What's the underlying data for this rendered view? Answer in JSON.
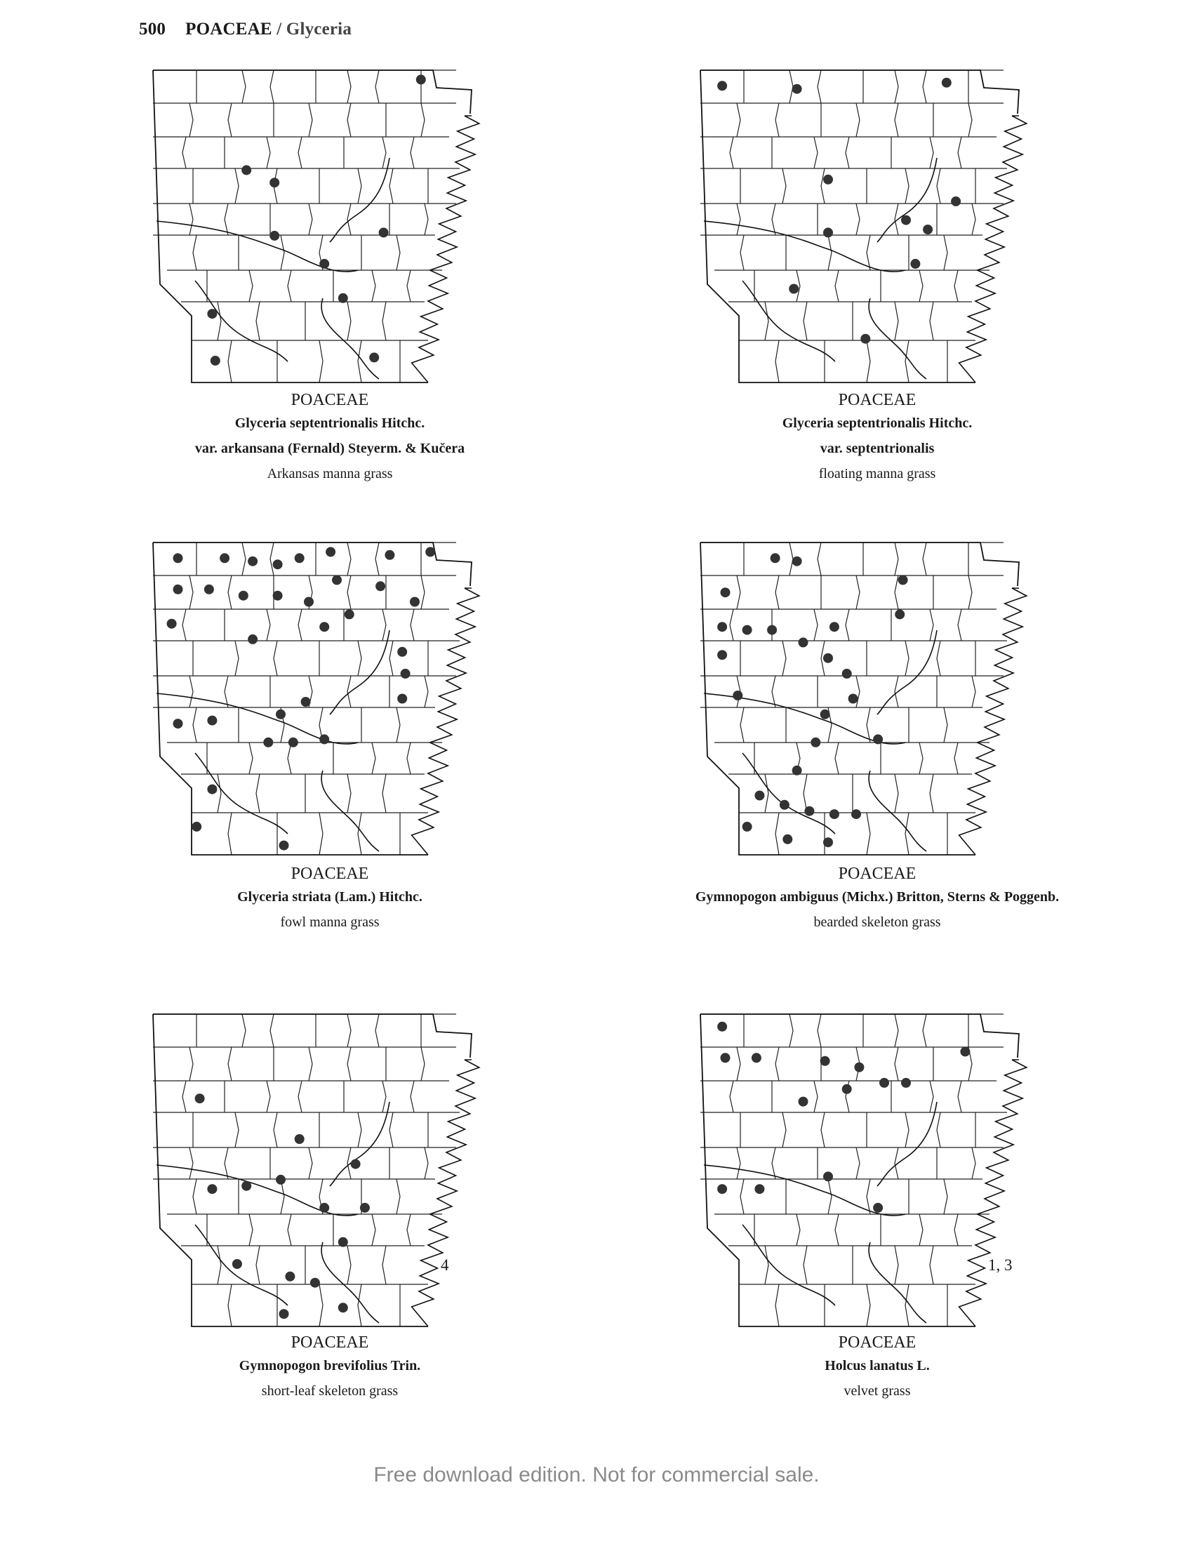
{
  "header": {
    "page_number": "500",
    "family": "POACEAE",
    "separator": " / ",
    "genus": "Glyceria"
  },
  "maps": [
    {
      "family": "POACEAE",
      "scientific_lines": [
        "Glyceria septentrionalis Hitchc.",
        "var. arkansana (Fernald) Steyerm. & Kučera"
      ],
      "common_name": "Arkansas manna grass",
      "note": "",
      "dots": [
        [
          0.86,
          0.03
        ],
        [
          0.3,
          0.32
        ],
        [
          0.39,
          0.36
        ],
        [
          0.39,
          0.53
        ],
        [
          0.74,
          0.52
        ],
        [
          0.55,
          0.62
        ],
        [
          0.61,
          0.73
        ],
        [
          0.19,
          0.78
        ],
        [
          0.2,
          0.93
        ],
        [
          0.71,
          0.92
        ]
      ]
    },
    {
      "family": "POACEAE",
      "scientific_lines": [
        "Glyceria septentrionalis Hitchc.",
        "var. septentrionalis"
      ],
      "common_name": "floating manna grass",
      "note": "",
      "dots": [
        [
          0.07,
          0.05
        ],
        [
          0.31,
          0.06
        ],
        [
          0.79,
          0.04
        ],
        [
          0.41,
          0.35
        ],
        [
          0.82,
          0.42
        ],
        [
          0.66,
          0.48
        ],
        [
          0.73,
          0.51
        ],
        [
          0.41,
          0.52
        ],
        [
          0.69,
          0.62
        ],
        [
          0.3,
          0.7
        ],
        [
          0.53,
          0.86
        ]
      ]
    },
    {
      "family": "POACEAE",
      "scientific_lines": [
        "Glyceria striata (Lam.) Hitchc."
      ],
      "common_name": "fowl manna grass",
      "note": "",
      "dots": [
        [
          0.08,
          0.05
        ],
        [
          0.23,
          0.05
        ],
        [
          0.32,
          0.06
        ],
        [
          0.4,
          0.07
        ],
        [
          0.47,
          0.05
        ],
        [
          0.57,
          0.03
        ],
        [
          0.76,
          0.04
        ],
        [
          0.89,
          0.03
        ],
        [
          0.08,
          0.15
        ],
        [
          0.18,
          0.15
        ],
        [
          0.29,
          0.17
        ],
        [
          0.4,
          0.17
        ],
        [
          0.5,
          0.19
        ],
        [
          0.59,
          0.12
        ],
        [
          0.73,
          0.14
        ],
        [
          0.84,
          0.19
        ],
        [
          0.06,
          0.26
        ],
        [
          0.55,
          0.27
        ],
        [
          0.63,
          0.23
        ],
        [
          0.32,
          0.31
        ],
        [
          0.8,
          0.35
        ],
        [
          0.81,
          0.42
        ],
        [
          0.8,
          0.5
        ],
        [
          0.49,
          0.51
        ],
        [
          0.41,
          0.55
        ],
        [
          0.08,
          0.58
        ],
        [
          0.19,
          0.57
        ],
        [
          0.37,
          0.64
        ],
        [
          0.45,
          0.64
        ],
        [
          0.55,
          0.63
        ],
        [
          0.19,
          0.79
        ],
        [
          0.14,
          0.91
        ],
        [
          0.42,
          0.97
        ]
      ]
    },
    {
      "family": "POACEAE",
      "scientific_lines": [
        "Gymnopogon ambiguus (Michx.) Britton, Sterns & Poggenb."
      ],
      "common_name": "bearded skeleton grass",
      "note": "",
      "dots": [
        [
          0.24,
          0.05
        ],
        [
          0.31,
          0.06
        ],
        [
          0.65,
          0.12
        ],
        [
          0.08,
          0.16
        ],
        [
          0.64,
          0.23
        ],
        [
          0.07,
          0.27
        ],
        [
          0.15,
          0.28
        ],
        [
          0.23,
          0.28
        ],
        [
          0.43,
          0.27
        ],
        [
          0.07,
          0.36
        ],
        [
          0.33,
          0.32
        ],
        [
          0.41,
          0.37
        ],
        [
          0.47,
          0.42
        ],
        [
          0.12,
          0.49
        ],
        [
          0.49,
          0.5
        ],
        [
          0.4,
          0.55
        ],
        [
          0.57,
          0.63
        ],
        [
          0.37,
          0.64
        ],
        [
          0.31,
          0.73
        ],
        [
          0.19,
          0.81
        ],
        [
          0.27,
          0.84
        ],
        [
          0.35,
          0.86
        ],
        [
          0.43,
          0.87
        ],
        [
          0.5,
          0.87
        ],
        [
          0.15,
          0.91
        ],
        [
          0.28,
          0.95
        ],
        [
          0.41,
          0.96
        ]
      ]
    },
    {
      "family": "POACEAE",
      "scientific_lines": [
        "Gymnopogon brevifolius Trin."
      ],
      "common_name": "short-leaf skeleton grass",
      "note": "4",
      "dots": [
        [
          0.15,
          0.27
        ],
        [
          0.47,
          0.4
        ],
        [
          0.65,
          0.48
        ],
        [
          0.41,
          0.53
        ],
        [
          0.3,
          0.55
        ],
        [
          0.19,
          0.56
        ],
        [
          0.55,
          0.62
        ],
        [
          0.68,
          0.62
        ],
        [
          0.61,
          0.73
        ],
        [
          0.27,
          0.8
        ],
        [
          0.44,
          0.84
        ],
        [
          0.52,
          0.86
        ],
        [
          0.42,
          0.96
        ],
        [
          0.61,
          0.94
        ]
      ]
    },
    {
      "family": "POACEAE",
      "scientific_lines": [
        "Holcus lanatus L."
      ],
      "common_name": "velvet grass",
      "note": "1, 3",
      "dots": [
        [
          0.07,
          0.04
        ],
        [
          0.08,
          0.14
        ],
        [
          0.18,
          0.14
        ],
        [
          0.4,
          0.15
        ],
        [
          0.51,
          0.17
        ],
        [
          0.59,
          0.22
        ],
        [
          0.66,
          0.22
        ],
        [
          0.85,
          0.12
        ],
        [
          0.47,
          0.24
        ],
        [
          0.33,
          0.28
        ],
        [
          0.41,
          0.52
        ],
        [
          0.07,
          0.56
        ],
        [
          0.19,
          0.56
        ],
        [
          0.57,
          0.62
        ]
      ]
    }
  ],
  "footer": {
    "text": "Free download edition. Not for commercial sale."
  }
}
